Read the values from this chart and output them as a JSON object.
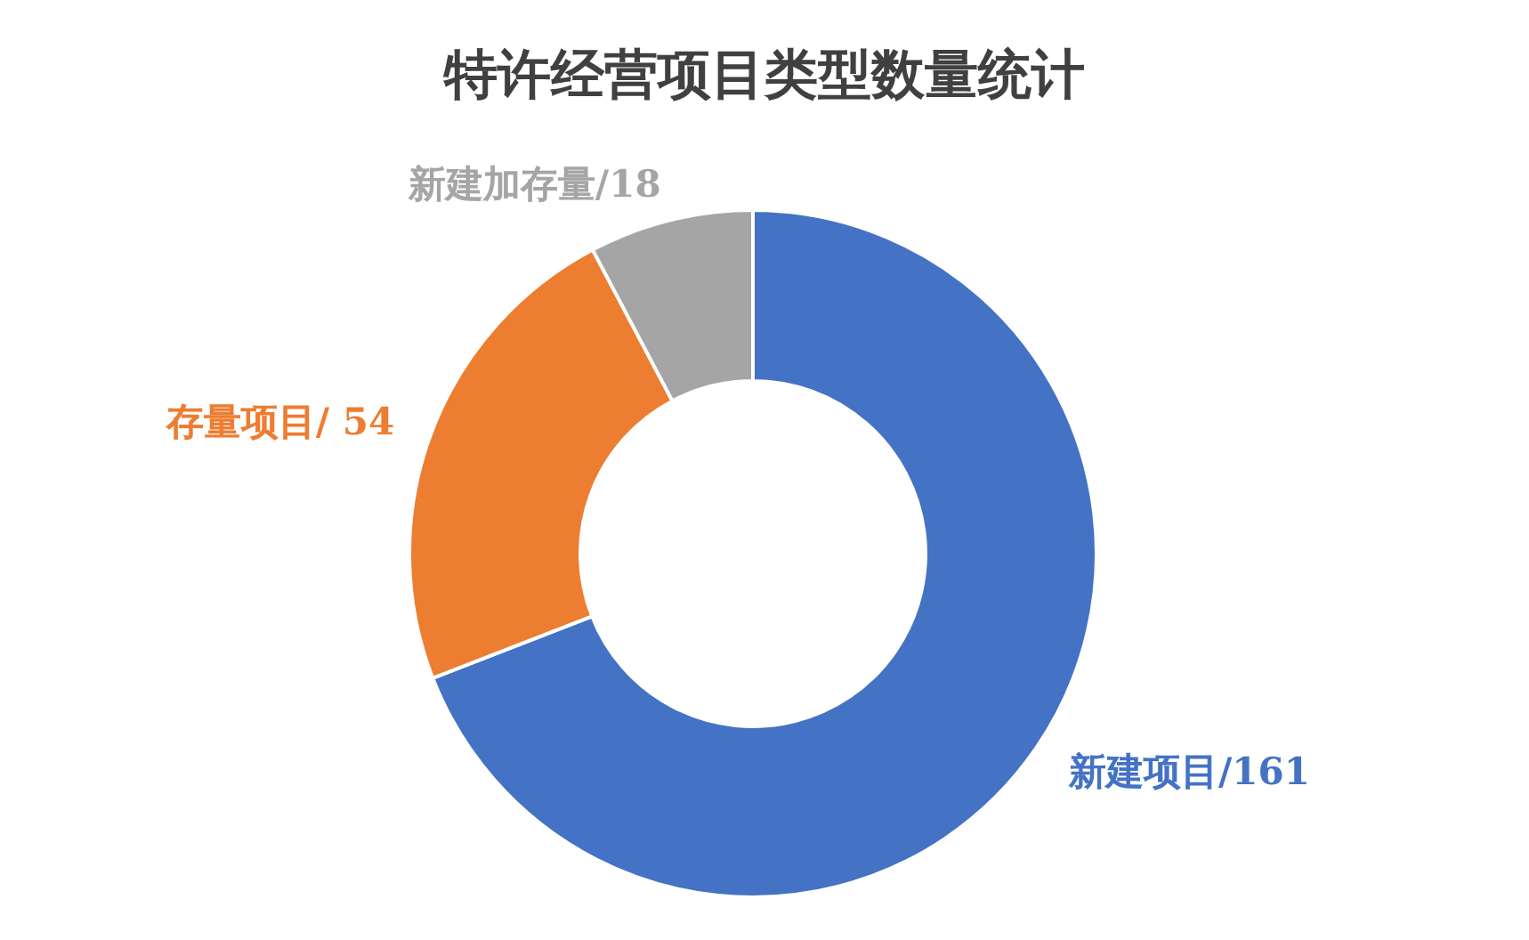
{
  "chart_data": {
    "type": "donut",
    "title": "特许经营项目类型数量统计",
    "categories": [
      "新建项目",
      "存量项目",
      "新建加存量"
    ],
    "values": [
      161,
      54,
      18
    ],
    "colors": [
      "#4472c4",
      "#ed7d31",
      "#a5a5a5"
    ],
    "value_labels": [
      "/161",
      "/ 54",
      "/18"
    ],
    "legend": false
  }
}
